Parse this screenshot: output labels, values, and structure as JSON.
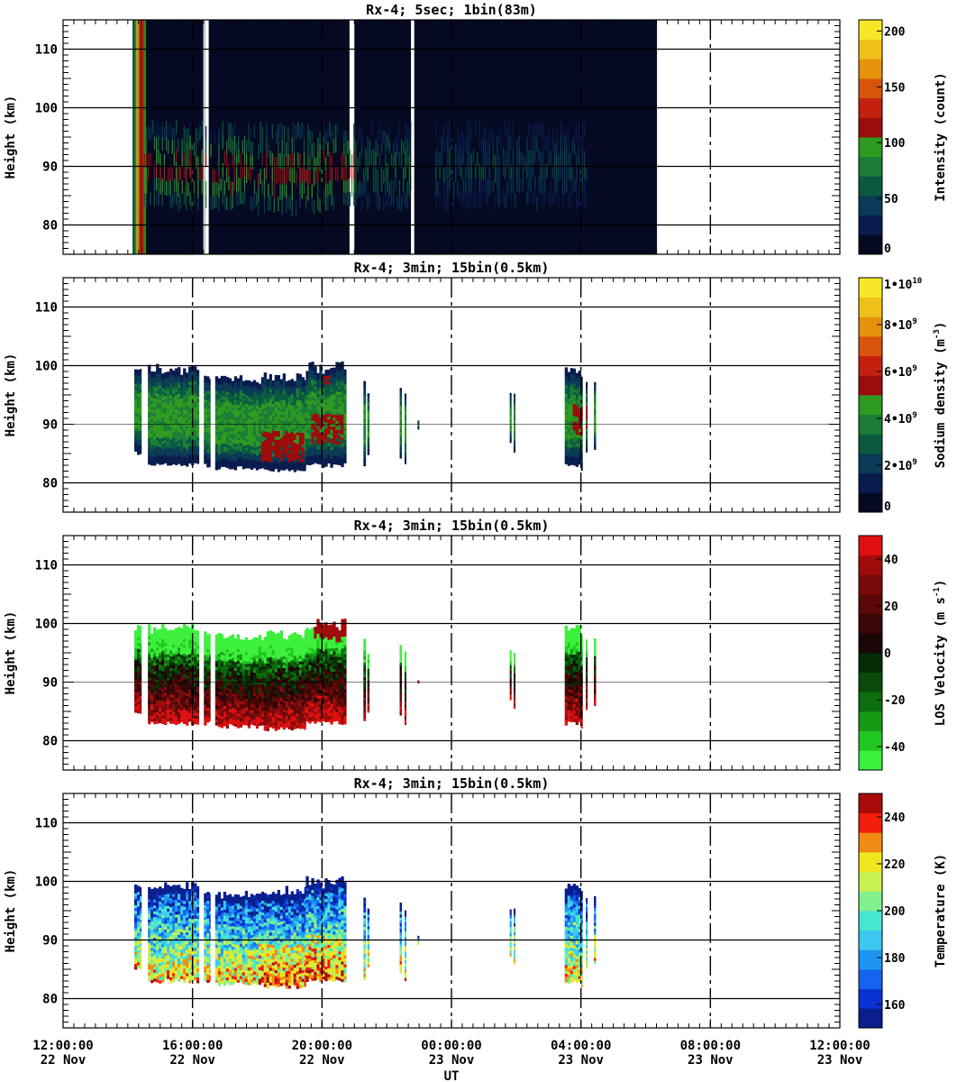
{
  "chart_data": [
    {
      "type": "heatmap",
      "title": "Rx-4;  5sec; 1bin(83m)",
      "ylabel": "Height (km)",
      "ylim": [
        75,
        115
      ],
      "yticks": [
        80,
        90,
        100,
        110
      ],
      "colorbar": {
        "label": "Intensity (count)",
        "range": [
          0,
          210
        ],
        "ticks": [
          {
            "v": 0,
            "t": "0"
          },
          {
            "v": 50,
            "t": "50"
          },
          {
            "v": 100,
            "t": "100"
          },
          {
            "v": 150,
            "t": "150"
          },
          {
            "v": 200,
            "t": "200"
          }
        ],
        "colors": [
          "#050a22",
          "#0a1c4e",
          "#0a3a55",
          "#0b5a40",
          "#1b7d36",
          "#2f9a20",
          "#9c0c0c",
          "#c42010",
          "#d8540a",
          "#e6920a",
          "#f0c01a",
          "#f8e628"
        ]
      },
      "layer": {
        "style": "raw",
        "block_ranges": [
          [
            14.15,
            16.38
          ],
          [
            16.5,
            20.85
          ],
          [
            21.0,
            22.75
          ],
          [
            22.85,
            30.35
          ]
        ],
        "bright_edge": [
          14.15,
          14.55
        ],
        "layer_ranges": [
          [
            14.5,
            16.4
          ],
          [
            16.55,
            20.5
          ],
          [
            20.6,
            22.8
          ],
          [
            23.5,
            26.5
          ],
          [
            26.5,
            28.2
          ]
        ],
        "layer_bottom": 83,
        "layer_top": 97
      },
      "grid": {
        "vertical_dashed": [
          16,
          20,
          24,
          28,
          32
        ],
        "horizontal": [
          80,
          90,
          100,
          110
        ]
      }
    },
    {
      "type": "heatmap",
      "title": "Rx-4; 3min; 15bin(0.5km)",
      "ylabel": "Height (km)",
      "ylim": [
        75,
        115
      ],
      "yticks": [
        80,
        90,
        100,
        110
      ],
      "colorbar": {
        "label": "Sodium density (m^-3)",
        "range": [
          0,
          10000000000
        ],
        "ticks": [
          {
            "v": 0,
            "t": "0"
          },
          {
            "v": 2000000000,
            "t": "2•10^9"
          },
          {
            "v": 4000000000,
            "t": "4•10^9"
          },
          {
            "v": 6000000000,
            "t": "6•10^9"
          },
          {
            "v": 8000000000,
            "t": "8•10^9"
          },
          {
            "v": 10000000000,
            "t": "1•10^10"
          }
        ],
        "colors": [
          "#050a22",
          "#0a1c4e",
          "#0a3a55",
          "#0b5a40",
          "#1b7d36",
          "#2f9a20",
          "#9c0c0c",
          "#c42010",
          "#d8540a",
          "#e6920a",
          "#f0c01a",
          "#f8e628"
        ]
      },
      "layer": {
        "style": "density"
      },
      "grid": {
        "vertical_dashed": [
          16,
          20,
          24,
          28,
          32
        ],
        "horizontal": [
          80,
          90,
          100,
          110
        ]
      }
    },
    {
      "type": "heatmap",
      "title": "Rx-4; 3min; 15bin(0.5km)",
      "ylabel": "LOS Velocity (m s^-1)",
      "ylim": [
        75,
        115
      ],
      "yticks": [
        80,
        90,
        100,
        110
      ],
      "colorbar": {
        "label": "LOS Velocity (m s^-1)",
        "range": [
          -50,
          50
        ],
        "ticks": [
          {
            "v": -40,
            "t": "-40"
          },
          {
            "v": -20,
            "t": "-20"
          },
          {
            "v": 0,
            "t": "0"
          },
          {
            "v": 20,
            "t": "20"
          },
          {
            "v": 40,
            "t": "40"
          }
        ],
        "colors": [
          "#3cf03c",
          "#22c822",
          "#169a16",
          "#0c6e0c",
          "#0a4a0a",
          "#062a06",
          "#1a0606",
          "#3a0606",
          "#5a0808",
          "#7a0a0a",
          "#a00c0c",
          "#e01010"
        ]
      },
      "layer": {
        "style": "velocity"
      },
      "grid": {
        "vertical_dashed": [
          16,
          20,
          24,
          28,
          32
        ],
        "horizontal": [
          80,
          90,
          100,
          110
        ]
      }
    },
    {
      "type": "heatmap",
      "title": "Rx-4; 3min; 15bin(0.5km)",
      "ylabel": "Height (km)",
      "ylim": [
        75,
        115
      ],
      "yticks": [
        80,
        90,
        100,
        110
      ],
      "colorbar": {
        "label": "Temperature (K)",
        "range": [
          150,
          250
        ],
        "ticks": [
          {
            "v": 160,
            "t": "160"
          },
          {
            "v": 180,
            "t": "180"
          },
          {
            "v": 200,
            "t": "200"
          },
          {
            "v": 220,
            "t": "220"
          },
          {
            "v": 240,
            "t": "240"
          }
        ],
        "colors": [
          "#0a1e8c",
          "#0a32d2",
          "#1464f0",
          "#1e96f0",
          "#3cc8f0",
          "#46e6d2",
          "#82f08c",
          "#c8f050",
          "#f0e61e",
          "#f08c14",
          "#f01e0a",
          "#aa0a0a"
        ]
      },
      "layer": {
        "style": "temperature"
      },
      "grid": {
        "vertical_dashed": [
          16,
          20,
          24,
          28,
          32
        ],
        "horizontal": [
          80,
          90,
          100,
          110
        ]
      }
    }
  ],
  "x_axis": {
    "label": "UT",
    "range": [
      12,
      36
    ],
    "ticks": [
      {
        "v": 12,
        "time": "12:00:00",
        "date": "22 Nov"
      },
      {
        "v": 16,
        "time": "16:00:00",
        "date": "22 Nov"
      },
      {
        "v": 20,
        "time": "20:00:00",
        "date": "22 Nov"
      },
      {
        "v": 24,
        "time": "00:00:00",
        "date": "23 Nov"
      },
      {
        "v": 28,
        "time": "04:00:00",
        "date": "23 Nov"
      },
      {
        "v": 32,
        "time": "08:00:00",
        "date": "23 Nov"
      },
      {
        "v": 36,
        "time": "12:00:00",
        "date": "23 Nov"
      }
    ]
  },
  "profile_bands": [
    {
      "start": 14.2,
      "end": 14.42,
      "bottom": 85,
      "top": 99,
      "top_var": 0.5
    },
    {
      "start": 14.62,
      "end": 16.2,
      "bottom": 83,
      "top": 99,
      "top_var": 0.8
    },
    {
      "start": 16.35,
      "end": 16.55,
      "bottom": 83,
      "top": 98,
      "top_var": 0.4
    },
    {
      "start": 16.7,
      "end": 18.2,
      "bottom": 82.5,
      "top": 97.5,
      "top_var": 0.6
    },
    {
      "start": 18.2,
      "end": 19.5,
      "bottom": 82,
      "top": 98,
      "top_var": 0.8
    },
    {
      "start": 19.5,
      "end": 20.75,
      "bottom": 83,
      "top": 99.5,
      "top_var": 1.1
    },
    {
      "start": 21.28,
      "end": 21.35,
      "bottom": 83,
      "top": 97,
      "top_var": 0.2
    },
    {
      "start": 21.4,
      "end": 21.46,
      "bottom": 85,
      "top": 95,
      "top_var": 0.2
    },
    {
      "start": 22.4,
      "end": 22.46,
      "bottom": 84,
      "top": 96,
      "top_var": 0.2
    },
    {
      "start": 22.55,
      "end": 22.6,
      "bottom": 83,
      "top": 95,
      "top_var": 0.2
    },
    {
      "start": 22.95,
      "end": 23.0,
      "bottom": 89.5,
      "top": 90.2,
      "top_var": 0.1
    },
    {
      "start": 25.8,
      "end": 25.85,
      "bottom": 87,
      "top": 95,
      "top_var": 0.1
    },
    {
      "start": 25.92,
      "end": 25.97,
      "bottom": 85.5,
      "top": 95,
      "top_var": 0.1
    },
    {
      "start": 27.5,
      "end": 28.0,
      "bottom": 83,
      "top": 99,
      "top_var": 0.6
    },
    {
      "start": 28.0,
      "end": 28.05,
      "bottom": 82,
      "top": 98,
      "top_var": 0.2
    },
    {
      "start": 28.15,
      "end": 28.2,
      "bottom": 85,
      "top": 97,
      "top_var": 0.2
    },
    {
      "start": 28.4,
      "end": 28.46,
      "bottom": 86,
      "top": 97,
      "top_var": 0.2
    }
  ]
}
